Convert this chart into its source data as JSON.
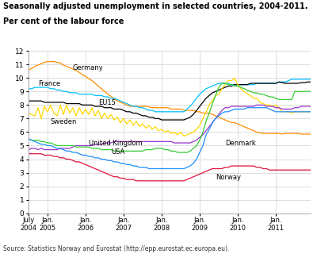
{
  "title1": "Seasonally adjusted unemployment in selected countries, 2004-2011.",
  "title2": "Per cent of the labour force",
  "source": "Source: Statistics Norway and Eurostat (http://epp.eurostat.ec.europa.eu).",
  "ylim": [
    0,
    12
  ],
  "yticks": [
    0,
    1,
    2,
    3,
    4,
    5,
    6,
    7,
    8,
    9,
    10,
    11,
    12
  ],
  "xtick_labels": [
    "July\n2004",
    "Jan.\n2005",
    "Jan.\n2006",
    "Jan.\n2007",
    "Jan.\n2008",
    "Jan.\n2009",
    "Jan.\n2010",
    "Jan.\n2011"
  ],
  "xtick_positions": [
    0,
    6,
    18,
    30,
    42,
    54,
    66,
    78
  ],
  "n_points": 90,
  "countries": {
    "Germany": {
      "color": "#FF8C00",
      "ann_x": 14,
      "ann_y": 10.75,
      "ann_ha": "left",
      "data": [
        10.6,
        10.7,
        10.85,
        10.95,
        11.05,
        11.15,
        11.2,
        11.2,
        11.2,
        11.15,
        11.1,
        10.95,
        10.85,
        10.75,
        10.65,
        10.55,
        10.4,
        10.25,
        10.1,
        9.95,
        9.8,
        9.6,
        9.4,
        9.2,
        9.0,
        8.8,
        8.65,
        8.45,
        8.3,
        8.2,
        8.1,
        8.0,
        7.9,
        7.9,
        7.9,
        7.9,
        7.9,
        7.9,
        7.85,
        7.8,
        7.8,
        7.8,
        7.8,
        7.8,
        7.8,
        7.7,
        7.7,
        7.7,
        7.7,
        7.6,
        7.6,
        7.6,
        7.6,
        7.5,
        7.5,
        7.4,
        7.4,
        7.4,
        7.3,
        7.2,
        7.1,
        7.0,
        6.9,
        6.8,
        6.7,
        6.7,
        6.6,
        6.5,
        6.4,
        6.3,
        6.2,
        6.1,
        6.0,
        5.95,
        5.9,
        5.9,
        5.9,
        5.9,
        5.9,
        5.9,
        5.85,
        5.9,
        5.9,
        5.9,
        5.9,
        5.9,
        5.85,
        5.85,
        5.85,
        5.85
      ]
    },
    "France": {
      "color": "#00BFFF",
      "ann_x": 3,
      "ann_y": 9.55,
      "ann_ha": "left",
      "data": [
        9.2,
        9.2,
        9.3,
        9.3,
        9.3,
        9.3,
        9.3,
        9.2,
        9.2,
        9.1,
        9.1,
        9.0,
        9.0,
        8.9,
        8.9,
        8.9,
        8.8,
        8.8,
        8.8,
        8.8,
        8.8,
        8.7,
        8.7,
        8.7,
        8.6,
        8.6,
        8.5,
        8.5,
        8.4,
        8.3,
        8.2,
        8.1,
        8.0,
        7.9,
        7.9,
        7.8,
        7.8,
        7.7,
        7.6,
        7.6,
        7.5,
        7.5,
        7.5,
        7.5,
        7.5,
        7.5,
        7.5,
        7.5,
        7.5,
        7.5,
        7.7,
        7.9,
        8.2,
        8.5,
        8.8,
        9.0,
        9.2,
        9.3,
        9.4,
        9.5,
        9.6,
        9.6,
        9.6,
        9.6,
        9.5,
        9.5,
        9.5,
        9.5,
        9.5,
        9.5,
        9.5,
        9.5,
        9.6,
        9.6,
        9.6,
        9.6,
        9.6,
        9.6,
        9.6,
        9.7,
        9.7,
        9.7,
        9.8,
        9.9,
        9.9,
        9.9,
        9.9,
        9.9,
        9.9,
        9.9
      ]
    },
    "EU15": {
      "color": "#000000",
      "ann_x": 22,
      "ann_y": 8.15,
      "ann_ha": "left",
      "data": [
        8.3,
        8.3,
        8.3,
        8.3,
        8.3,
        8.2,
        8.2,
        8.2,
        8.2,
        8.2,
        8.2,
        8.2,
        8.1,
        8.1,
        8.1,
        8.1,
        8.1,
        8.0,
        8.0,
        8.0,
        8.0,
        7.9,
        7.9,
        7.9,
        7.8,
        7.8,
        7.8,
        7.7,
        7.7,
        7.7,
        7.6,
        7.5,
        7.5,
        7.4,
        7.4,
        7.3,
        7.2,
        7.2,
        7.1,
        7.1,
        7.0,
        7.0,
        6.9,
        6.9,
        6.9,
        6.9,
        6.9,
        6.9,
        6.9,
        6.9,
        7.0,
        7.1,
        7.3,
        7.6,
        7.9,
        8.2,
        8.5,
        8.7,
        8.9,
        9.0,
        9.1,
        9.2,
        9.3,
        9.4,
        9.4,
        9.5,
        9.5,
        9.5,
        9.5,
        9.5,
        9.6,
        9.6,
        9.6,
        9.6,
        9.6,
        9.6,
        9.6,
        9.6,
        9.6,
        9.7,
        9.65,
        9.6,
        9.6,
        9.6,
        9.6,
        9.6,
        9.65,
        9.65,
        9.7,
        9.7
      ]
    },
    "Sweden": {
      "color": "#FFD700",
      "ann_x": 7,
      "ann_y": 6.75,
      "ann_ha": "left",
      "data": [
        7.4,
        7.3,
        7.2,
        7.8,
        7.0,
        7.9,
        7.5,
        8.0,
        7.4,
        7.2,
        8.0,
        7.3,
        8.0,
        7.4,
        7.8,
        7.2,
        7.8,
        7.3,
        7.7,
        7.3,
        7.8,
        7.2,
        7.6,
        7.0,
        7.4,
        7.0,
        7.3,
        6.9,
        7.1,
        6.7,
        7.0,
        6.6,
        6.9,
        6.5,
        6.8,
        6.4,
        6.6,
        6.3,
        6.5,
        6.2,
        6.4,
        6.1,
        6.2,
        6.0,
        6.1,
        5.9,
        6.0,
        5.8,
        6.0,
        5.7,
        5.8,
        5.9,
        6.0,
        6.2,
        6.5,
        7.0,
        7.5,
        8.0,
        8.3,
        8.7,
        8.8,
        9.2,
        9.5,
        9.8,
        9.8,
        10.0,
        9.5,
        9.2,
        9.0,
        8.8,
        8.7,
        8.5,
        8.5,
        8.2,
        8.1,
        8.0,
        8.0,
        7.9,
        8.0,
        7.8,
        7.5,
        7.5,
        7.5,
        7.4,
        7.5,
        7.5,
        7.5,
        7.5,
        7.5,
        7.5
      ]
    },
    "United Kingdom": {
      "color": "#9932CC",
      "ann_x": 19,
      "ann_y": 5.2,
      "ann_ha": "left",
      "data": [
        4.7,
        4.8,
        4.8,
        4.7,
        4.8,
        4.7,
        4.7,
        4.7,
        4.7,
        4.7,
        4.8,
        4.8,
        4.8,
        4.8,
        4.9,
        5.0,
        5.0,
        5.0,
        5.0,
        5.0,
        5.0,
        5.1,
        5.1,
        5.1,
        5.2,
        5.2,
        5.2,
        5.3,
        5.3,
        5.3,
        5.3,
        5.3,
        5.3,
        5.3,
        5.3,
        5.3,
        5.3,
        5.3,
        5.3,
        5.3,
        5.3,
        5.3,
        5.3,
        5.3,
        5.3,
        5.3,
        5.2,
        5.2,
        5.2,
        5.2,
        5.2,
        5.2,
        5.3,
        5.4,
        5.6,
        5.8,
        6.1,
        6.4,
        6.7,
        7.0,
        7.3,
        7.6,
        7.8,
        7.8,
        7.9,
        7.9,
        7.9,
        7.9,
        7.9,
        7.9,
        7.9,
        7.9,
        8.0,
        8.0,
        8.0,
        7.9,
        7.9,
        7.9,
        7.8,
        7.8,
        7.7,
        7.7,
        7.7,
        7.7,
        7.8,
        7.8,
        7.9,
        7.9,
        7.9,
        7.9
      ]
    },
    "USA": {
      "color": "#32CD32",
      "ann_x": 26,
      "ann_y": 4.5,
      "ann_ha": "left",
      "data": [
        5.5,
        5.4,
        5.4,
        5.4,
        5.3,
        5.3,
        5.2,
        5.2,
        5.1,
        5.0,
        5.0,
        5.0,
        5.0,
        5.0,
        5.0,
        4.9,
        4.9,
        4.9,
        4.9,
        4.9,
        4.8,
        4.8,
        4.8,
        4.7,
        4.7,
        4.7,
        4.7,
        4.6,
        4.6,
        4.6,
        4.6,
        4.6,
        4.6,
        4.6,
        4.6,
        4.6,
        4.6,
        4.7,
        4.7,
        4.7,
        4.8,
        4.8,
        4.8,
        4.7,
        4.7,
        4.6,
        4.6,
        4.5,
        4.5,
        4.5,
        4.5,
        4.6,
        4.8,
        5.0,
        5.4,
        6.0,
        6.8,
        7.4,
        8.1,
        8.7,
        9.3,
        9.6,
        9.6,
        9.5,
        9.5,
        9.4,
        9.4,
        9.3,
        9.2,
        9.1,
        9.0,
        8.9,
        8.9,
        8.8,
        8.8,
        8.7,
        8.6,
        8.6,
        8.5,
        8.4,
        8.4,
        8.4,
        8.4,
        8.4,
        9.0,
        9.0,
        9.0,
        9.0,
        9.0,
        9.0
      ]
    },
    "Denmark": {
      "color": "#1E90FF",
      "ann_x": 62,
      "ann_y": 5.2,
      "ann_ha": "left",
      "data": [
        5.5,
        5.4,
        5.3,
        5.2,
        5.1,
        5.1,
        5.0,
        5.0,
        4.9,
        4.8,
        4.8,
        4.7,
        4.6,
        4.6,
        4.5,
        4.5,
        4.4,
        4.3,
        4.3,
        4.2,
        4.2,
        4.1,
        4.1,
        4.0,
        4.0,
        3.9,
        3.9,
        3.8,
        3.8,
        3.7,
        3.7,
        3.6,
        3.6,
        3.5,
        3.5,
        3.4,
        3.4,
        3.4,
        3.3,
        3.3,
        3.3,
        3.3,
        3.3,
        3.3,
        3.3,
        3.3,
        3.3,
        3.3,
        3.3,
        3.3,
        3.4,
        3.5,
        3.7,
        4.0,
        4.5,
        5.0,
        5.8,
        6.2,
        6.7,
        7.0,
        7.2,
        7.4,
        7.5,
        7.5,
        7.6,
        7.7,
        7.7,
        7.7,
        7.7,
        7.8,
        7.8,
        7.8,
        7.8,
        7.8,
        7.8,
        7.8,
        7.7,
        7.6,
        7.5,
        7.5,
        7.5,
        7.5,
        7.5,
        7.5,
        7.5,
        7.5,
        7.5,
        7.5,
        7.5,
        7.5
      ]
    },
    "Norway": {
      "color": "#DC143C",
      "ann_x": 59,
      "ann_y": 2.65,
      "ann_ha": "left",
      "data": [
        4.4,
        4.4,
        4.4,
        4.4,
        4.4,
        4.3,
        4.3,
        4.3,
        4.2,
        4.2,
        4.1,
        4.1,
        4.0,
        4.0,
        3.9,
        3.8,
        3.8,
        3.7,
        3.6,
        3.5,
        3.4,
        3.3,
        3.2,
        3.1,
        3.0,
        2.9,
        2.8,
        2.7,
        2.7,
        2.6,
        2.6,
        2.5,
        2.5,
        2.5,
        2.4,
        2.4,
        2.4,
        2.4,
        2.4,
        2.4,
        2.4,
        2.4,
        2.4,
        2.4,
        2.4,
        2.4,
        2.4,
        2.4,
        2.4,
        2.4,
        2.5,
        2.6,
        2.7,
        2.8,
        2.9,
        3.0,
        3.1,
        3.2,
        3.3,
        3.3,
        3.3,
        3.3,
        3.4,
        3.4,
        3.5,
        3.5,
        3.5,
        3.5,
        3.5,
        3.5,
        3.5,
        3.5,
        3.4,
        3.4,
        3.3,
        3.3,
        3.2,
        3.2,
        3.2,
        3.2,
        3.2,
        3.2,
        3.2,
        3.2,
        3.2,
        3.2,
        3.2,
        3.2,
        3.2,
        3.2
      ]
    }
  }
}
